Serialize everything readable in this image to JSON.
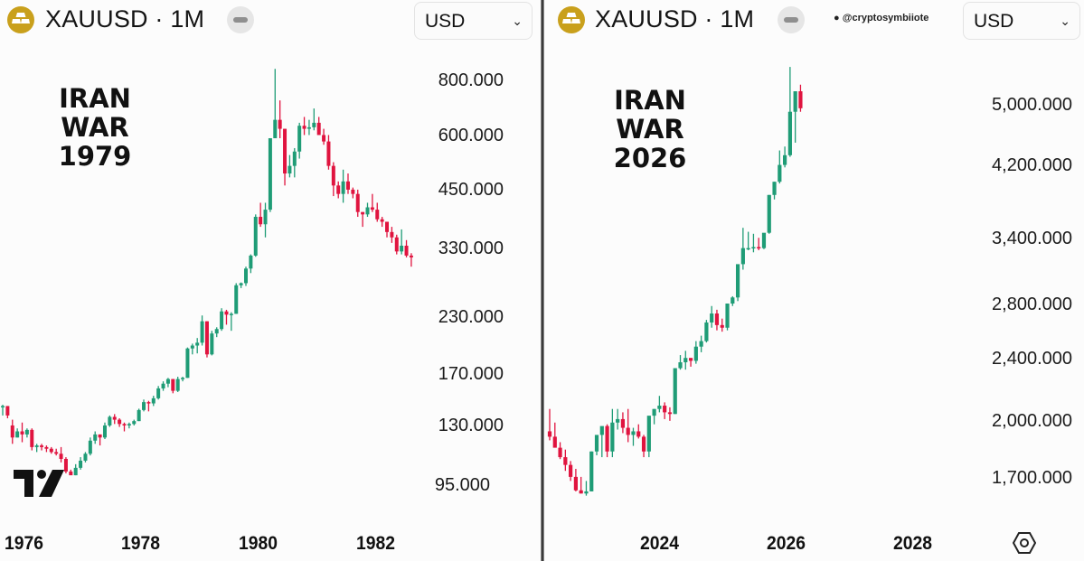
{
  "colors": {
    "up": "#1f9c76",
    "down": "#e0143f",
    "logo_gold": "#c9a01c",
    "divider": "#3a3a3a"
  },
  "left_panel": {
    "header": {
      "symbol": "XAUUSD · 1M",
      "logo_icon": "gold-bars-icon",
      "currency": "USD",
      "currency_icon": "chevron-down-icon"
    },
    "annotation": {
      "line1": "IRAN WAR",
      "line2": "1979"
    },
    "y_axis": [
      "800.000",
      "600.000",
      "450.000",
      "330.000",
      "230.000",
      "170.000",
      "130.000",
      "95.000"
    ],
    "x_axis": [
      "1976",
      "1978",
      "1980",
      "1982"
    ],
    "brand_logo": "tradingview-logo-icon"
  },
  "right_panel": {
    "header": {
      "symbol": "XAUUSD · 1M",
      "logo_icon": "gold-bars-icon",
      "watermark": "@cryptosymbiiote",
      "currency": "USD",
      "currency_icon": "chevron-down-icon"
    },
    "annotation": {
      "line1": "IRAN WAR",
      "line2": "2026"
    },
    "y_axis": [
      "5,000.000",
      "4,200.000",
      "3,400.000",
      "2,800.000",
      "2,400.000",
      "2,000.000",
      "1,700.000"
    ],
    "x_axis": [
      "2024",
      "2026",
      "2028"
    ],
    "settings_icon": "settings-hexagon-icon"
  },
  "chart_data": [
    {
      "type": "candlestick",
      "title": "XAUUSD · 1M",
      "annotation": "IRAN WAR 1979",
      "scale": "log",
      "ylim": [
        85,
        900
      ],
      "y_ticks": [
        800,
        600,
        450,
        330,
        230,
        170,
        130,
        95
      ],
      "x_ticks": [
        "1976",
        "1978",
        "1980",
        "1982"
      ],
      "x_range": [
        "1975-09",
        "1982-06"
      ],
      "ohlc_note": "monthly candles [open, high, low, close], USD, approximate",
      "candles": [
        [
          143,
          145,
          137,
          144
        ],
        [
          144,
          144,
          135,
          137
        ],
        [
          130,
          134,
          118,
          122
        ],
        [
          122,
          128,
          122,
          126
        ],
        [
          126,
          132,
          119,
          124
        ],
        [
          124,
          128,
          122,
          127
        ],
        [
          127,
          128,
          114,
          116
        ],
        [
          116,
          118,
          113,
          117
        ],
        [
          117,
          118,
          114,
          116
        ],
        [
          116,
          117,
          113,
          115
        ],
        [
          115,
          116,
          112,
          113
        ],
        [
          113,
          115,
          111,
          112
        ],
        [
          112,
          116,
          107,
          109
        ],
        [
          109,
          110,
          101,
          102
        ],
        [
          102,
          103,
          101,
          100
        ],
        [
          100,
          106,
          100,
          104
        ],
        [
          104,
          110,
          103,
          108
        ],
        [
          108,
          113,
          107,
          112
        ],
        [
          112,
          122,
          111,
          120
        ],
        [
          120,
          126,
          118,
          124
        ],
        [
          124,
          124,
          117,
          122
        ],
        [
          122,
          132,
          121,
          130
        ],
        [
          130,
          137,
          129,
          136
        ],
        [
          136,
          138,
          131,
          134
        ],
        [
          134,
          135,
          129,
          131
        ],
        [
          131,
          132,
          126,
          130
        ],
        [
          130,
          132,
          128,
          131
        ],
        [
          131,
          134,
          130,
          133
        ],
        [
          133,
          142,
          133,
          141
        ],
        [
          141,
          149,
          140,
          147
        ],
        [
          147,
          148,
          140,
          146
        ],
        [
          146,
          152,
          144,
          150
        ],
        [
          150,
          160,
          149,
          158
        ],
        [
          158,
          164,
          156,
          162
        ],
        [
          162,
          167,
          159,
          166
        ],
        [
          166,
          166,
          154,
          156
        ],
        [
          156,
          168,
          155,
          166
        ],
        [
          166,
          168,
          164,
          167
        ],
        [
          167,
          196,
          167,
          195
        ],
        [
          195,
          200,
          189,
          198
        ],
        [
          198,
          206,
          190,
          201
        ],
        [
          201,
          232,
          198,
          225
        ],
        [
          225,
          225,
          186,
          189
        ],
        [
          189,
          214,
          188,
          211
        ],
        [
          211,
          218,
          207,
          216
        ],
        [
          216,
          241,
          214,
          237
        ],
        [
          237,
          239,
          221,
          233
        ],
        [
          233,
          236,
          214,
          234
        ],
        [
          234,
          275,
          234,
          272
        ],
        [
          272,
          276,
          268,
          275
        ],
        [
          275,
          300,
          271,
          297
        ],
        [
          297,
          320,
          290,
          318
        ],
        [
          318,
          395,
          316,
          390
        ],
        [
          390,
          420,
          370,
          375
        ],
        [
          375,
          420,
          350,
          405
        ],
        [
          405,
          590,
          400,
          590
        ],
        [
          590,
          850,
          590,
          650
        ],
        [
          650,
          720,
          590,
          620
        ],
        [
          620,
          620,
          460,
          490
        ],
        [
          490,
          540,
          480,
          510
        ],
        [
          510,
          560,
          480,
          550
        ],
        [
          550,
          640,
          530,
          630
        ],
        [
          630,
          660,
          600,
          620
        ],
        [
          620,
          650,
          600,
          625
        ],
        [
          625,
          690,
          615,
          640
        ],
        [
          640,
          660,
          610,
          600
        ],
        [
          600,
          620,
          570,
          580
        ],
        [
          580,
          600,
          500,
          510
        ],
        [
          510,
          520,
          435,
          460
        ],
        [
          460,
          470,
          430,
          440
        ],
        [
          440,
          500,
          420,
          470
        ],
        [
          470,
          490,
          440,
          450
        ],
        [
          450,
          455,
          430,
          440
        ],
        [
          440,
          450,
          390,
          400
        ],
        [
          400,
          400,
          370,
          395
        ],
        [
          395,
          420,
          390,
          410
        ],
        [
          410,
          440,
          400,
          405
        ],
        [
          405,
          420,
          380,
          385
        ],
        [
          385,
          390,
          370,
          380
        ],
        [
          380,
          380,
          350,
          360
        ],
        [
          360,
          370,
          340,
          350
        ],
        [
          350,
          355,
          320,
          325
        ],
        [
          325,
          365,
          320,
          335
        ],
        [
          335,
          345,
          315,
          318
        ],
        [
          318,
          322,
          300,
          315
        ]
      ]
    },
    {
      "type": "candlestick",
      "title": "XAUUSD · 1M",
      "annotation": "IRAN WAR 2026",
      "scale": "log",
      "ylim": [
        1550,
        5600
      ],
      "y_ticks": [
        5000,
        4200,
        3400,
        2800,
        2400,
        2000,
        1700
      ],
      "x_ticks": [
        "2024",
        "2026",
        "2028"
      ],
      "x_range": [
        "2022-03",
        "2026-03"
      ],
      "ohlc_note": "monthly candles [open, high, low, close], USD, approximate",
      "candles": [
        [
          1940,
          2070,
          1890,
          1910
        ],
        [
          1910,
          1990,
          1870,
          1850
        ],
        [
          1850,
          1880,
          1790,
          1800
        ],
        [
          1800,
          1840,
          1730,
          1760
        ],
        [
          1760,
          1780,
          1680,
          1700
        ],
        [
          1700,
          1740,
          1630,
          1635
        ],
        [
          1635,
          1700,
          1620,
          1620
        ],
        [
          1620,
          1680,
          1610,
          1630
        ],
        [
          1630,
          1830,
          1630,
          1830
        ],
        [
          1830,
          1880,
          1810,
          1920
        ],
        [
          1920,
          1950,
          1800,
          1970
        ],
        [
          1970,
          1980,
          1800,
          1830
        ],
        [
          1830,
          2070,
          1800,
          1990
        ],
        [
          1990,
          2070,
          1950,
          2010
        ],
        [
          2010,
          2050,
          1930,
          1960
        ],
        [
          1960,
          2070,
          1880,
          1920
        ],
        [
          1920,
          1960,
          1860,
          1940
        ],
        [
          1940,
          1980,
          1900,
          1910
        ],
        [
          1910,
          1920,
          1800,
          1830
        ],
        [
          1830,
          2000,
          1800,
          2030
        ],
        [
          2030,
          2070,
          1980,
          2070
        ],
        [
          2070,
          2150,
          2050,
          2090
        ],
        [
          2090,
          2110,
          2010,
          2050
        ],
        [
          2050,
          2080,
          2000,
          2040
        ],
        [
          2040,
          2200,
          2040,
          2330
        ],
        [
          2330,
          2420,
          2320,
          2370
        ],
        [
          2370,
          2450,
          2320,
          2400
        ],
        [
          2400,
          2400,
          2340,
          2380
        ],
        [
          2380,
          2520,
          2360,
          2480
        ],
        [
          2480,
          2560,
          2440,
          2520
        ],
        [
          2520,
          2680,
          2510,
          2660
        ],
        [
          2660,
          2790,
          2620,
          2730
        ],
        [
          2730,
          2760,
          2600,
          2640
        ],
        [
          2640,
          2690,
          2590,
          2620
        ],
        [
          2620,
          2810,
          2600,
          2810
        ],
        [
          2810,
          2870,
          2790,
          2860
        ],
        [
          2860,
          3100,
          2830,
          3150
        ],
        [
          3150,
          3500,
          3100,
          3300
        ],
        [
          3300,
          3460,
          3280,
          3300
        ],
        [
          3300,
          3440,
          3260,
          3310
        ],
        [
          3310,
          3400,
          3280,
          3300
        ],
        [
          3300,
          3420,
          3290,
          3450
        ],
        [
          3450,
          3850,
          3440,
          3850
        ],
        [
          3850,
          4000,
          3800,
          4000
        ],
        [
          4000,
          4380,
          3980,
          4200
        ],
        [
          4200,
          4430,
          4170,
          4320
        ],
        [
          4320,
          5580,
          4300,
          4900
        ],
        [
          4900,
          5200,
          4480,
          5200
        ],
        [
          5200,
          5300,
          4900,
          4950
        ]
      ]
    }
  ]
}
